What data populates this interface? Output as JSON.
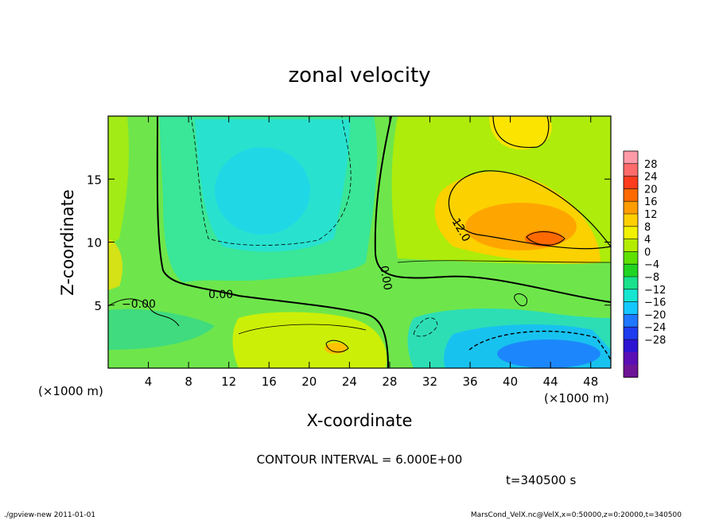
{
  "chart_data": {
    "type": "heatmap",
    "title": "zonal velocity",
    "xlabel": "X-coordinate",
    "ylabel": "Z-coordinate",
    "x_units": "(×1000 m)",
    "y_units": "(×1000 m)",
    "xlim": [
      0,
      50
    ],
    "ylim": [
      0,
      20
    ],
    "x_ticks": [
      4,
      8,
      12,
      16,
      20,
      24,
      28,
      32,
      36,
      40,
      44,
      48
    ],
    "y_ticks": [
      5,
      10,
      15
    ],
    "colorbar": {
      "labels": [
        28,
        24,
        20,
        16,
        12,
        8,
        4,
        0,
        -4,
        -8,
        -12,
        -16,
        -20,
        -24,
        -28
      ],
      "colors": [
        "#ff9aa8",
        "#ff6b6b",
        "#ff3c1e",
        "#ff6a00",
        "#ff9d00",
        "#ffd000",
        "#f2f200",
        "#b4ec00",
        "#5ee000",
        "#22d422",
        "#19e18c",
        "#14e6d2",
        "#14c8ff",
        "#1e78ff",
        "#1e3cf0",
        "#2d14d2",
        "#5a0fb4",
        "#6e1496"
      ]
    },
    "contour_interval_text": "CONTOUR INTERVAL = 6.000E+00",
    "contour_labels": [
      "-0.00",
      "0.00",
      "0.00",
      "12.0"
    ],
    "time_text": "t=340500 s",
    "footer_left": "./gpview-new   2011-01-01",
    "footer_right": "MarsCond_VelX.nc@VelX,x=0:50000,z=0:20000,t=340500"
  }
}
